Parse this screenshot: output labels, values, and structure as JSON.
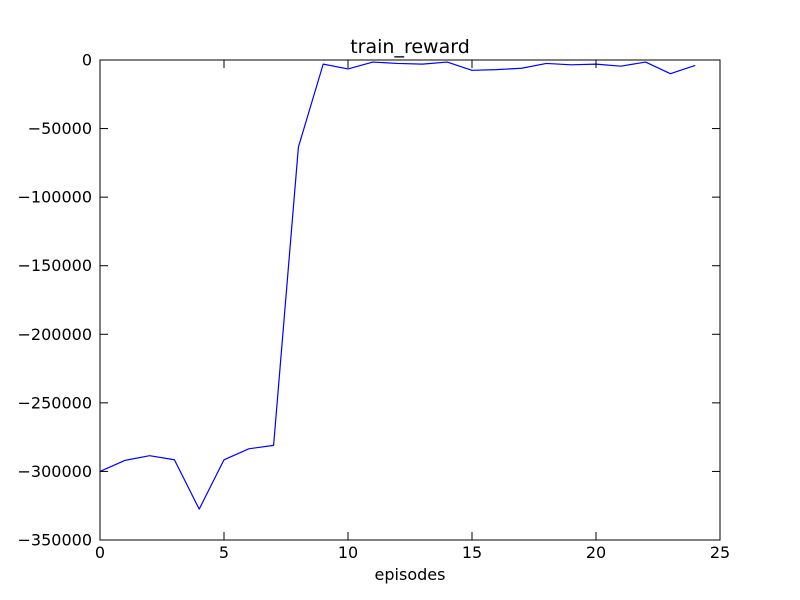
{
  "chart_data": {
    "type": "line",
    "title": "train_reward",
    "xlabel": "episodes",
    "ylabel": "",
    "xlim": [
      0,
      25
    ],
    "ylim": [
      -350000,
      0
    ],
    "xticks": [
      0,
      5,
      10,
      15,
      20,
      25
    ],
    "yticks": [
      0,
      -50000,
      -100000,
      -150000,
      -200000,
      -250000,
      -300000,
      -350000
    ],
    "xtick_labels": [
      "0",
      "5",
      "10",
      "15",
      "20",
      "25"
    ],
    "ytick_labels": [
      "0",
      "−50000",
      "−100000",
      "−150000",
      "−200000",
      "−250000",
      "−300000",
      "−350000"
    ],
    "grid": false,
    "series": [
      {
        "color": "#0000ff",
        "x": [
          0,
          1,
          2,
          3,
          4,
          5,
          6,
          7,
          8,
          9,
          10,
          11,
          12,
          13,
          14,
          15,
          16,
          17,
          18,
          19,
          20,
          21,
          22,
          23,
          24
        ],
        "y": [
          -300000,
          -292000,
          -288500,
          -291500,
          -327500,
          -291500,
          -283500,
          -281000,
          -63500,
          -3000,
          -6500,
          -1500,
          -2500,
          -3000,
          -1500,
          -7500,
          -7000,
          -6000,
          -2500,
          -3500,
          -3000,
          -4500,
          -1500,
          -10000,
          -4000
        ]
      }
    ]
  }
}
